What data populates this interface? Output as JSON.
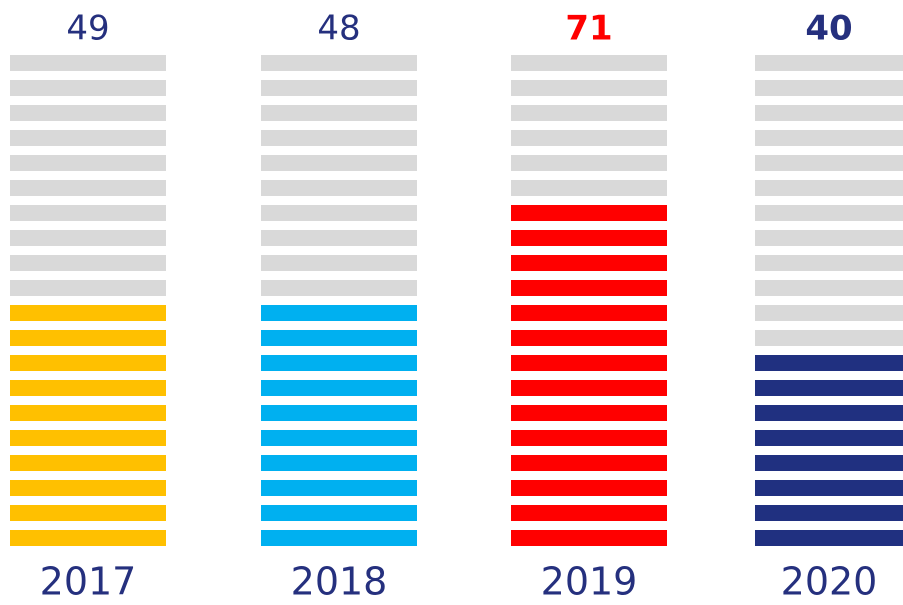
{
  "chart_data": {
    "type": "pictorial-bar",
    "categories": [
      "2017",
      "2018",
      "2019",
      "2020"
    ],
    "values": [
      49,
      48,
      71,
      40
    ],
    "colors": [
      "#ffc000",
      "#00b0f0",
      "#ff0000",
      "#203080"
    ],
    "label_colors": [
      "#25307e",
      "#25307e",
      "#ff0000",
      "#25307e"
    ],
    "label_bold": [
      false,
      false,
      true,
      true
    ],
    "empty_color": "#d9d9d9",
    "ylim": [
      0,
      100
    ],
    "slices": 20
  }
}
